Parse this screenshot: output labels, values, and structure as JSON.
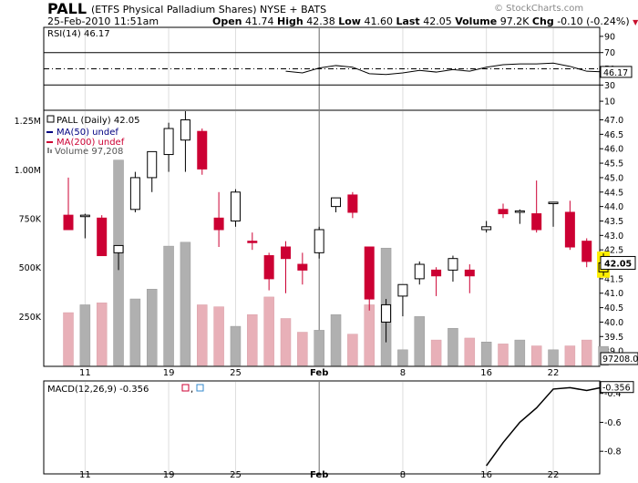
{
  "header": {
    "symbol": "PALL",
    "name": "(ETFS Physical Palladium Shares)",
    "exchange": "NYSE + BATS",
    "datetime": "25-Feb-2010 11:51am",
    "open_label": "Open",
    "open": "41.74",
    "high_label": "High",
    "high": "42.38",
    "low_label": "Low",
    "low": "41.60",
    "last_label": "Last",
    "last": "42.05",
    "volume_label": "Volume",
    "volume": "97.2K",
    "chg_label": "Chg",
    "chg": "-0.10 (-0.24%)",
    "copyright": "© StockCharts.com",
    "colors": {
      "down": "#cc0033",
      "up": "#ffffff",
      "volume_up": "#b0b0b0",
      "volume_down": "#e8b0b8",
      "highlight": "#ffee00"
    }
  },
  "chart_data": [
    {
      "type": "line",
      "legend": "RSI(14) 46.17",
      "ylim": [
        0,
        100
      ],
      "y_ticks": [
        10,
        30,
        50,
        70,
        90
      ],
      "reference_lines": [
        30,
        50,
        70
      ],
      "last_value": "46.17",
      "x": [
        "2010-01-28",
        "2010-01-29",
        "2010-02-01",
        "2010-02-02",
        "2010-02-03",
        "2010-02-04",
        "2010-02-05",
        "2010-02-08",
        "2010-02-09",
        "2010-02-10",
        "2010-02-11",
        "2010-02-12",
        "2010-02-16",
        "2010-02-17",
        "2010-02-18",
        "2010-02-19",
        "2010-02-22",
        "2010-02-23",
        "2010-02-24",
        "2010-02-25"
      ],
      "values": [
        47,
        45,
        51,
        54,
        52,
        44,
        43,
        45,
        48,
        46,
        49,
        47,
        52,
        55,
        56,
        56,
        57,
        53,
        47,
        46.17
      ]
    },
    {
      "type": "candlestick",
      "legend": {
        "main": "PALL (Daily) 42.05",
        "ma50": "MA(50) undef",
        "ma200": "MA(200) undef",
        "volume": "Volume 97,208"
      },
      "ylim": [
        38.5,
        47.3
      ],
      "y_ticks": [
        "39.0",
        "39.5",
        "40.0",
        "40.5",
        "41.0",
        "41.5",
        "42.0",
        "42.5",
        "43.0",
        "43.5",
        "44.0",
        "44.5",
        "45.0",
        "45.5",
        "46.0",
        "46.5",
        "47.0"
      ],
      "last_price": "42.05",
      "last_volume": "97208.0",
      "x_ticks": [
        "11",
        "19",
        "25",
        "Feb",
        "8",
        "16",
        "22"
      ],
      "volume_ticks": [
        "250K",
        "500K",
        "750K",
        "1.00M",
        "1.25M"
      ],
      "volume_ylim": [
        0,
        1300000
      ],
      "candles": [
        {
          "date": "2010-01-08",
          "o": 43.7,
          "h": 45.0,
          "l": 43.2,
          "c": 43.2,
          "v": 270000
        },
        {
          "date": "2010-01-11",
          "o": 43.65,
          "h": 43.75,
          "l": 42.9,
          "c": 43.7,
          "v": 310000
        },
        {
          "date": "2010-01-12",
          "o": 43.6,
          "h": 43.7,
          "l": 42.3,
          "c": 42.3,
          "v": 320000
        },
        {
          "date": "2010-01-13",
          "o": 42.4,
          "h": 42.6,
          "l": 41.8,
          "c": 42.65,
          "v": 1050000
        },
        {
          "date": "2010-01-14",
          "o": 43.9,
          "h": 45.2,
          "l": 43.8,
          "c": 45.0,
          "v": 340000
        },
        {
          "date": "2010-01-15",
          "o": 45.0,
          "h": 45.9,
          "l": 44.5,
          "c": 45.9,
          "v": 390000
        },
        {
          "date": "2010-01-19",
          "o": 45.8,
          "h": 46.9,
          "l": 45.2,
          "c": 46.7,
          "v": 610000
        },
        {
          "date": "2010-01-20",
          "o": 46.3,
          "h": 47.3,
          "l": 45.2,
          "c": 47.0,
          "v": 630000
        },
        {
          "date": "2010-01-21",
          "o": 46.6,
          "h": 46.7,
          "l": 45.1,
          "c": 45.3,
          "v": 310000
        },
        {
          "date": "2010-01-22",
          "o": 43.6,
          "h": 44.5,
          "l": 42.6,
          "c": 43.2,
          "v": 300000
        },
        {
          "date": "2010-01-25",
          "o": 43.5,
          "h": 44.6,
          "l": 43.3,
          "c": 44.5,
          "v": 200000
        },
        {
          "date": "2010-01-26",
          "o": 42.8,
          "h": 43.1,
          "l": 42.5,
          "c": 42.75,
          "v": 260000
        },
        {
          "date": "2010-01-27",
          "o": 42.3,
          "h": 42.4,
          "l": 41.1,
          "c": 41.5,
          "v": 350000
        },
        {
          "date": "2010-01-28",
          "o": 42.6,
          "h": 42.8,
          "l": 41.0,
          "c": 42.2,
          "v": 240000
        },
        {
          "date": "2010-01-29",
          "o": 42.0,
          "h": 42.4,
          "l": 41.3,
          "c": 41.8,
          "v": 170000
        },
        {
          "date": "2010-02-01",
          "o": 42.4,
          "h": 43.3,
          "l": 42.2,
          "c": 43.2,
          "v": 180000
        },
        {
          "date": "2010-02-02",
          "o": 44.0,
          "h": 44.3,
          "l": 43.8,
          "c": 44.3,
          "v": 260000
        },
        {
          "date": "2010-02-03",
          "o": 44.4,
          "h": 44.5,
          "l": 43.6,
          "c": 43.8,
          "v": 160000
        },
        {
          "date": "2010-02-04",
          "o": 42.6,
          "h": 42.6,
          "l": 40.4,
          "c": 40.8,
          "v": 310000
        },
        {
          "date": "2010-02-05",
          "o": 40.0,
          "h": 40.8,
          "l": 39.3,
          "c": 40.6,
          "v": 600000
        },
        {
          "date": "2010-02-08",
          "o": 40.9,
          "h": 41.3,
          "l": 40.2,
          "c": 41.3,
          "v": 80000
        },
        {
          "date": "2010-02-09",
          "o": 41.5,
          "h": 42.1,
          "l": 41.3,
          "c": 42.0,
          "v": 250000
        },
        {
          "date": "2010-02-10",
          "o": 41.8,
          "h": 41.9,
          "l": 40.9,
          "c": 41.6,
          "v": 130000
        },
        {
          "date": "2010-02-11",
          "o": 41.8,
          "h": 42.3,
          "l": 41.4,
          "c": 42.2,
          "v": 190000
        },
        {
          "date": "2010-02-12",
          "o": 41.8,
          "h": 42.0,
          "l": 41.0,
          "c": 41.6,
          "v": 140000
        },
        {
          "date": "2010-02-16",
          "o": 43.2,
          "h": 43.5,
          "l": 43.1,
          "c": 43.3,
          "v": 120000
        },
        {
          "date": "2010-02-17",
          "o": 43.9,
          "h": 44.1,
          "l": 43.6,
          "c": 43.75,
          "v": 110000
        },
        {
          "date": "2010-02-18",
          "o": 43.8,
          "h": 43.9,
          "l": 43.4,
          "c": 43.85,
          "v": 130000
        },
        {
          "date": "2010-02-19",
          "o": 43.75,
          "h": 44.9,
          "l": 43.1,
          "c": 43.2,
          "v": 100000
        },
        {
          "date": "2010-02-22",
          "o": 44.1,
          "h": 44.15,
          "l": 43.3,
          "c": 44.15,
          "v": 80000
        },
        {
          "date": "2010-02-23",
          "o": 43.8,
          "h": 44.2,
          "l": 42.5,
          "c": 42.6,
          "v": 100000
        },
        {
          "date": "2010-02-24",
          "o": 42.8,
          "h": 42.9,
          "l": 41.9,
          "c": 42.1,
          "v": 130000
        },
        {
          "date": "2010-02-25",
          "o": 41.74,
          "h": 42.38,
          "l": 41.6,
          "c": 42.05,
          "v": 97208
        }
      ]
    },
    {
      "type": "line",
      "legend": "MACD(12,26,9) -0.356",
      "ylim": [
        -0.95,
        -0.32
      ],
      "y_ticks": [
        "-0.4",
        "-0.6",
        "-0.8"
      ],
      "last_value": "-0.356",
      "x": [
        "2010-02-16",
        "2010-02-17",
        "2010-02-18",
        "2010-02-19",
        "2010-02-22",
        "2010-02-23",
        "2010-02-24",
        "2010-02-25"
      ],
      "values": [
        -0.9,
        -0.74,
        -0.6,
        -0.5,
        -0.37,
        -0.36,
        -0.38,
        -0.356
      ]
    }
  ]
}
